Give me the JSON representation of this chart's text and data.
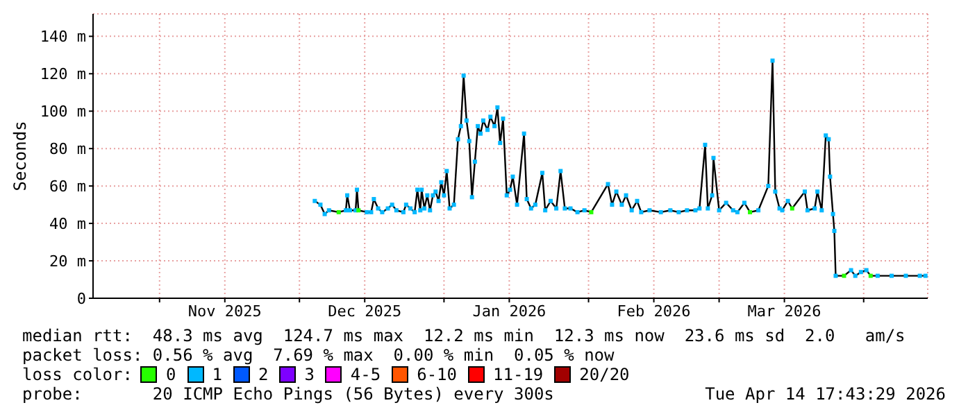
{
  "chart_data": {
    "type": "line",
    "ylabel": "Seconds",
    "legend_title": "loss color:",
    "legend": "bottom",
    "grid": true,
    "marker": "square",
    "line_style": "solid",
    "xlim": [
      "2025-10-17T17:43",
      "2026-04-14T17:43"
    ],
    "xticks": [
      {
        "value": "2025-11-01T00:00",
        "label": null
      },
      {
        "value": "2025-11-15T00:00",
        "label": "Nov 2025"
      },
      {
        "value": "2025-12-01T00:00",
        "label": null
      },
      {
        "value": "2025-12-15T00:00",
        "label": "Dec 2025"
      },
      {
        "value": "2026-01-01T00:00",
        "label": null
      },
      {
        "value": "2026-01-15T00:00",
        "label": "Jan 2026"
      },
      {
        "value": "2026-02-01T00:00",
        "label": null
      },
      {
        "value": "2026-02-15T00:00",
        "label": "Feb 2026"
      },
      {
        "value": "2026-03-01T00:00",
        "label": null
      },
      {
        "value": "2026-03-15T00:00",
        "label": "Mar 2026"
      },
      {
        "value": "2026-04-01T00:00",
        "label": null
      }
    ],
    "ylim": [
      0,
      152
    ],
    "yticks": [
      0,
      {
        "value": 20,
        "label": "20 m"
      },
      {
        "value": 40,
        "label": "40 m"
      },
      {
        "value": 60,
        "label": "60 m"
      },
      {
        "value": 80,
        "label": "80 m"
      },
      {
        "value": 100,
        "label": "100 m"
      },
      {
        "value": 120,
        "label": "120 m"
      },
      {
        "value": 140,
        "label": "140 m"
      }
    ],
    "x": [
      "2025-12-04T07:00",
      "2025-12-05T12:00",
      "2025-12-06T10:00",
      "2025-12-07T08:00",
      "2025-12-09T10:00",
      "2025-12-10T23:00",
      "2025-12-11T06:00",
      "2025-12-11T20:00",
      "2025-12-13T01:00",
      "2025-12-13T08:00",
      "2025-12-13T16:00",
      "2025-12-15T11:00",
      "2025-12-16T09:00",
      "2025-12-16T23:00",
      "2025-12-17T21:00",
      "2025-12-18T18:00",
      "2025-12-19T23:00",
      "2025-12-20T21:00",
      "2025-12-21T19:00",
      "2025-12-23T07:00",
      "2025-12-23T21:00",
      "2025-12-24T19:00",
      "2025-12-25T17:00",
      "2025-12-26T07:00",
      "2025-12-26T22:00",
      "2025-12-27T05:00",
      "2025-12-27T19:00",
      "2025-12-28T10:00",
      "2025-12-29T00:00",
      "2025-12-29T15:00",
      "2025-12-30T05:00",
      "2025-12-30T20:00",
      "2025-12-31T10:00",
      "2026-01-01T00:00",
      "2026-01-01T14:00",
      "2026-01-02T05:00",
      "2026-01-03T03:00",
      "2026-01-04T00:00",
      "2026-01-04T15:00",
      "2026-01-05T05:00",
      "2026-01-05T20:00",
      "2026-01-06T10:00",
      "2026-01-07T00:00",
      "2026-01-07T15:00",
      "2026-01-08T06:00",
      "2026-01-08T20:00",
      "2026-01-09T10:00",
      "2026-01-10T08:00",
      "2026-01-10T23:00",
      "2026-01-11T20:00",
      "2026-01-12T11:00",
      "2026-01-13T01:00",
      "2026-01-13T16:00",
      "2026-01-14T11:00",
      "2026-01-15T04:00",
      "2026-01-15T18:00",
      "2026-01-16T16:00",
      "2026-01-18T04:00",
      "2026-01-18T18:00",
      "2026-01-19T16:00",
      "2026-01-20T14:00",
      "2026-01-22T02:00",
      "2026-01-22T17:00",
      "2026-01-23T21:00",
      "2026-01-25T02:00",
      "2026-01-26T00:00",
      "2026-01-26T22:00",
      "2026-01-28T03:00",
      "2026-01-29T15:00",
      "2026-01-31T03:00",
      "2026-02-01T14:00",
      "2026-02-05T04:00",
      "2026-02-06T01:00",
      "2026-02-06T23:00",
      "2026-02-08T03:00",
      "2026-02-09T01:00",
      "2026-02-10T06:00",
      "2026-02-11T10:00",
      "2026-02-12T07:00",
      "2026-02-14T02:00",
      "2026-02-16T12:00",
      "2026-02-18T13:00",
      "2026-02-20T08:00",
      "2026-02-22T03:00",
      "2026-02-23T22:00",
      "2026-02-24T19:00",
      "2026-02-26T00:00",
      "2026-02-26T14:00",
      "2026-02-27T12:00",
      "2026-02-27T19:00",
      "2026-03-01T00:00",
      "2026-03-02T12:00",
      "2026-03-04T00:00",
      "2026-03-04T22:00",
      "2026-03-06T10:00",
      "2026-03-07T15:00",
      "2026-03-09T10:00",
      "2026-03-11T13:00",
      "2026-03-12T11:00",
      "2026-03-13T01:00",
      "2026-03-13T23:00",
      "2026-03-14T13:00",
      "2026-03-15T18:00",
      "2026-03-16T16:00",
      "2026-03-19T09:00",
      "2026-03-19T23:00",
      "2026-03-21T12:00",
      "2026-03-22T02:00",
      "2026-03-23T00:00",
      "2026-03-23T21:00",
      "2026-03-24T12:00",
      "2026-03-24T19:00",
      "2026-03-25T10:00",
      "2026-03-25T17:00",
      "2026-03-26T00:00",
      "2026-03-27T19:00",
      "2026-03-29T07:00",
      "2026-03-30T05:00",
      "2026-03-31T10:00",
      "2026-04-01T14:00",
      "2026-04-02T12:00",
      "2026-04-04T00:00",
      "2026-04-07T00:00",
      "2026-04-10T01:00",
      "2026-04-13T01:00",
      "2026-04-14T06:00"
    ],
    "series": [
      {
        "color": "#000000",
        "values": [
          52,
          50,
          45,
          47,
          46,
          47,
          55,
          47,
          47,
          58,
          47,
          46,
          46,
          53,
          48,
          46,
          48,
          50,
          47,
          46,
          50,
          48,
          46,
          58,
          47,
          58,
          48,
          55,
          47,
          55,
          57,
          52,
          62,
          55,
          68,
          48,
          50,
          85,
          92,
          119,
          95,
          84,
          54,
          73,
          92,
          88,
          95,
          90,
          97,
          92,
          102,
          83,
          96,
          55,
          58,
          65,
          50,
          88,
          53,
          48,
          50,
          67,
          47,
          52,
          48,
          68,
          48,
          48,
          46,
          47,
          46,
          61,
          50,
          57,
          50,
          55,
          47,
          52,
          46,
          47,
          46,
          47,
          46,
          47,
          47,
          48,
          82,
          48,
          55,
          75,
          47,
          51,
          47,
          46,
          51,
          46,
          47,
          60,
          127,
          57,
          48,
          47,
          52,
          48,
          57,
          47,
          48,
          57,
          47,
          87,
          85,
          65,
          45,
          36,
          12,
          12,
          15,
          12,
          14,
          15,
          12,
          12,
          12,
          12,
          12,
          12
        ],
        "colors": [
          "#00b8ff",
          "#00b8ff",
          "#00b8ff",
          "#00b8ff",
          "#26ff00",
          "#00b8ff",
          "#00b8ff",
          "#00b8ff",
          "#00b8ff",
          "#00b8ff",
          "#26ff00",
          "#00b8ff",
          "#00b8ff",
          "#00b8ff",
          "#00b8ff",
          "#00b8ff",
          "#00b8ff",
          "#00b8ff",
          "#00b8ff",
          "#00b8ff",
          "#00b8ff",
          "#00b8ff",
          "#00b8ff",
          "#00b8ff",
          "#00b8ff",
          "#00b8ff",
          "#00b8ff",
          "#00b8ff",
          "#00b8ff",
          "#00b8ff",
          "#00b8ff",
          "#00b8ff",
          "#00b8ff",
          "#00b8ff",
          "#00b8ff",
          "#00b8ff",
          "#00b8ff",
          "#00b8ff",
          "#00b8ff",
          "#00b8ff",
          "#00b8ff",
          "#00b8ff",
          "#00b8ff",
          "#00b8ff",
          "#00b8ff",
          "#00b8ff",
          "#00b8ff",
          "#00b8ff",
          "#00b8ff",
          "#00b8ff",
          "#00b8ff",
          "#00b8ff",
          "#00b8ff",
          "#00b8ff",
          "#00b8ff",
          "#00b8ff",
          "#00b8ff",
          "#00b8ff",
          "#00b8ff",
          "#00b8ff",
          "#00b8ff",
          "#00b8ff",
          "#00b8ff",
          "#00b8ff",
          "#00b8ff",
          "#00b8ff",
          "#00b8ff",
          "#00b8ff",
          "#00b8ff",
          "#00b8ff",
          "#26ff00",
          "#00b8ff",
          "#00b8ff",
          "#00b8ff",
          "#00b8ff",
          "#00b8ff",
          "#00b8ff",
          "#00b8ff",
          "#00b8ff",
          "#00b8ff",
          "#00b8ff",
          "#00b8ff",
          "#00b8ff",
          "#00b8ff",
          "#00b8ff",
          "#00b8ff",
          "#00b8ff",
          "#00b8ff",
          "#00b8ff",
          "#00b8ff",
          "#00b8ff",
          "#00b8ff",
          "#00b8ff",
          "#00b8ff",
          "#00b8ff",
          "#26ff00",
          "#00b8ff",
          "#00b8ff",
          "#00b8ff",
          "#00b8ff",
          "#00b8ff",
          "#00b8ff",
          "#00b8ff",
          "#26ff00",
          "#00b8ff",
          "#00b8ff",
          "#00b8ff",
          "#00b8ff",
          "#00b8ff",
          "#00b8ff",
          "#00b8ff",
          "#00b8ff",
          "#00b8ff",
          "#00b8ff",
          "#00b8ff",
          "#26ff00",
          "#00b8ff",
          "#00b8ff",
          "#00b8ff",
          "#00b8ff",
          "#26ff00",
          "#00b8ff",
          "#00b8ff",
          "#00b8ff",
          "#00b8ff",
          "#00b8ff"
        ]
      },
      {
        "type": "scatter",
        "name": "0",
        "color": "#26ff00",
        "values": [
          null,
          null,
          null,
          null,
          null,
          null,
          null,
          null,
          null,
          null,
          null,
          null,
          null,
          null,
          null,
          null,
          null,
          null,
          null,
          null,
          null,
          null,
          null,
          null,
          null,
          null,
          null,
          null,
          null,
          null,
          null,
          null,
          null,
          null,
          null,
          null,
          null,
          null,
          null,
          null,
          null,
          null,
          null,
          null,
          null,
          null,
          null,
          null,
          null,
          null,
          null,
          null,
          null,
          null,
          null,
          null,
          null,
          null,
          null,
          null,
          null,
          null,
          null,
          null,
          null,
          null,
          null,
          null,
          null,
          null,
          null,
          null,
          null,
          null,
          null,
          null,
          null,
          null,
          null,
          null,
          null,
          null,
          null,
          null,
          null,
          null,
          null,
          null,
          null,
          null,
          null,
          null,
          null,
          null,
          null,
          null,
          null,
          null,
          null,
          null,
          null,
          null,
          null,
          null,
          null,
          null,
          null,
          null,
          null,
          null,
          null,
          null,
          null,
          null,
          null,
          null,
          null,
          null,
          null,
          null,
          null,
          null,
          null,
          null,
          null,
          null
        ]
      },
      {
        "type": "scatter",
        "name": "1",
        "color": "#00b8ff",
        "values": [
          null,
          null,
          null,
          null,
          null,
          null,
          null,
          null,
          null,
          null,
          null,
          null,
          null,
          null,
          null,
          null,
          null,
          null,
          null,
          null,
          null,
          null,
          null,
          null,
          null,
          null,
          null,
          null,
          null,
          null,
          null,
          null,
          null,
          null,
          null,
          null,
          null,
          null,
          null,
          null,
          null,
          null,
          null,
          null,
          null,
          null,
          null,
          null,
          null,
          null,
          null,
          null,
          null,
          null,
          null,
          null,
          null,
          null,
          null,
          null,
          null,
          null,
          null,
          null,
          null,
          null,
          null,
          null,
          null,
          null,
          null,
          null,
          null,
          null,
          null,
          null,
          null,
          null,
          null,
          null,
          null,
          null,
          null,
          null,
          null,
          null,
          null,
          null,
          null,
          null,
          null,
          null,
          null,
          null,
          null,
          null,
          null,
          null,
          null,
          null,
          null,
          null,
          null,
          null,
          null,
          null,
          null,
          null,
          null,
          null,
          null,
          null,
          null,
          null,
          null,
          null,
          null,
          null,
          null,
          null,
          null,
          null,
          null,
          null,
          null,
          null
        ]
      },
      {
        "type": "scatter",
        "name": "2",
        "color": "#0059ff",
        "values": [
          null,
          null,
          null,
          null,
          null,
          null,
          null,
          null,
          null,
          null,
          null,
          null,
          null,
          null,
          null,
          null,
          null,
          null,
          null,
          null,
          null,
          null,
          null,
          null,
          null,
          null,
          null,
          null,
          null,
          null,
          null,
          null,
          null,
          null,
          null,
          null,
          null,
          null,
          null,
          null,
          null,
          null,
          null,
          null,
          null,
          null,
          null,
          null,
          null,
          null,
          null,
          null,
          null,
          null,
          null,
          null,
          null,
          null,
          null,
          null,
          null,
          null,
          null,
          null,
          null,
          null,
          null,
          null,
          null,
          null,
          null,
          null,
          null,
          null,
          null,
          null,
          null,
          null,
          null,
          null,
          null,
          null,
          null,
          null,
          null,
          null,
          null,
          null,
          null,
          null,
          null,
          null,
          null,
          null,
          null,
          null,
          null,
          null,
          null,
          null,
          null,
          null,
          null,
          null,
          null,
          null,
          null,
          null,
          null,
          null,
          null,
          null,
          null,
          null,
          null,
          null,
          null,
          null,
          null,
          null,
          null,
          null,
          null,
          null,
          null,
          null
        ]
      },
      {
        "type": "scatter",
        "name": "3",
        "color": "#7e00ff",
        "values": [
          null,
          null,
          null,
          null,
          null,
          null,
          null,
          null,
          null,
          null,
          null,
          null,
          null,
          null,
          null,
          null,
          null,
          null,
          null,
          null,
          null,
          null,
          null,
          null,
          null,
          null,
          null,
          null,
          null,
          null,
          null,
          null,
          null,
          null,
          null,
          null,
          null,
          null,
          null,
          null,
          null,
          null,
          null,
          null,
          null,
          null,
          null,
          null,
          null,
          null,
          null,
          null,
          null,
          null,
          null,
          null,
          null,
          null,
          null,
          null,
          null,
          null,
          null,
          null,
          null,
          null,
          null,
          null,
          null,
          null,
          null,
          null,
          null,
          null,
          null,
          null,
          null,
          null,
          null,
          null,
          null,
          null,
          null,
          null,
          null,
          null,
          null,
          null,
          null,
          null,
          null,
          null,
          null,
          null,
          null,
          null,
          null,
          null,
          null,
          null,
          null,
          null,
          null,
          null,
          null,
          null,
          null,
          null,
          null,
          null,
          null,
          null,
          null,
          null,
          null,
          null,
          null,
          null,
          null,
          null,
          null,
          null,
          null,
          null,
          null,
          null
        ]
      },
      {
        "type": "scatter",
        "name": "4-5",
        "color": "#ff00ff",
        "values": [
          null,
          null,
          null,
          null,
          null,
          null,
          null,
          null,
          null,
          null,
          null,
          null,
          null,
          null,
          null,
          null,
          null,
          null,
          null,
          null,
          null,
          null,
          null,
          null,
          null,
          null,
          null,
          null,
          null,
          null,
          null,
          null,
          null,
          null,
          null,
          null,
          null,
          null,
          null,
          null,
          null,
          null,
          null,
          null,
          null,
          null,
          null,
          null,
          null,
          null,
          null,
          null,
          null,
          null,
          null,
          null,
          null,
          null,
          null,
          null,
          null,
          null,
          null,
          null,
          null,
          null,
          null,
          null,
          null,
          null,
          null,
          null,
          null,
          null,
          null,
          null,
          null,
          null,
          null,
          null,
          null,
          null,
          null,
          null,
          null,
          null,
          null,
          null,
          null,
          null,
          null,
          null,
          null,
          null,
          null,
          null,
          null,
          null,
          null,
          null,
          null,
          null,
          null,
          null,
          null,
          null,
          null,
          null,
          null,
          null,
          null,
          null,
          null,
          null,
          null,
          null,
          null,
          null,
          null,
          null,
          null,
          null,
          null,
          null,
          null,
          null
        ]
      },
      {
        "type": "scatter",
        "name": "6-10",
        "color": "#ff5500",
        "values": [
          null,
          null,
          null,
          null,
          null,
          null,
          null,
          null,
          null,
          null,
          null,
          null,
          null,
          null,
          null,
          null,
          null,
          null,
          null,
          null,
          null,
          null,
          null,
          null,
          null,
          null,
          null,
          null,
          null,
          null,
          null,
          null,
          null,
          null,
          null,
          null,
          null,
          null,
          null,
          null,
          null,
          null,
          null,
          null,
          null,
          null,
          null,
          null,
          null,
          null,
          null,
          null,
          null,
          null,
          null,
          null,
          null,
          null,
          null,
          null,
          null,
          null,
          null,
          null,
          null,
          null,
          null,
          null,
          null,
          null,
          null,
          null,
          null,
          null,
          null,
          null,
          null,
          null,
          null,
          null,
          null,
          null,
          null,
          null,
          null,
          null,
          null,
          null,
          null,
          null,
          null,
          null,
          null,
          null,
          null,
          null,
          null,
          null,
          null,
          null,
          null,
          null,
          null,
          null,
          null,
          null,
          null,
          null,
          null,
          null,
          null,
          null,
          null,
          null,
          null,
          null,
          null,
          null,
          null,
          null,
          null,
          null,
          null,
          null,
          null,
          null
        ]
      },
      {
        "type": "scatter",
        "name": "11-19",
        "color": "#ff0000",
        "values": [
          null,
          null,
          null,
          null,
          null,
          null,
          null,
          null,
          null,
          null,
          null,
          null,
          null,
          null,
          null,
          null,
          null,
          null,
          null,
          null,
          null,
          null,
          null,
          null,
          null,
          null,
          null,
          null,
          null,
          null,
          null,
          null,
          null,
          null,
          null,
          null,
          null,
          null,
          null,
          null,
          null,
          null,
          null,
          null,
          null,
          null,
          null,
          null,
          null,
          null,
          null,
          null,
          null,
          null,
          null,
          null,
          null,
          null,
          null,
          null,
          null,
          null,
          null,
          null,
          null,
          null,
          null,
          null,
          null,
          null,
          null,
          null,
          null,
          null,
          null,
          null,
          null,
          null,
          null,
          null,
          null,
          null,
          null,
          null,
          null,
          null,
          null,
          null,
          null,
          null,
          null,
          null,
          null,
          null,
          null,
          null,
          null,
          null,
          null,
          null,
          null,
          null,
          null,
          null,
          null,
          null,
          null,
          null,
          null,
          null,
          null,
          null,
          null,
          null,
          null,
          null,
          null,
          null,
          null,
          null,
          null,
          null,
          null,
          null,
          null,
          null
        ]
      },
      {
        "type": "scatter",
        "name": "20/20",
        "color": "#a10000",
        "values": [
          null,
          null,
          null,
          null,
          null,
          null,
          null,
          null,
          null,
          null,
          null,
          null,
          null,
          null,
          null,
          null,
          null,
          null,
          null,
          null,
          null,
          null,
          null,
          null,
          null,
          null,
          null,
          null,
          null,
          null,
          null,
          null,
          null,
          null,
          null,
          null,
          null,
          null,
          null,
          null,
          null,
          null,
          null,
          null,
          null,
          null,
          null,
          null,
          null,
          null,
          null,
          null,
          null,
          null,
          null,
          null,
          null,
          null,
          null,
          null,
          null,
          null,
          null,
          null,
          null,
          null,
          null,
          null,
          null,
          null,
          null,
          null,
          null,
          null,
          null,
          null,
          null,
          null,
          null,
          null,
          null,
          null,
          null,
          null,
          null,
          null,
          null,
          null,
          null,
          null,
          null,
          null,
          null,
          null,
          null,
          null,
          null,
          null,
          null,
          null,
          null,
          null,
          null,
          null,
          null,
          null,
          null,
          null,
          null,
          null,
          null,
          null,
          null,
          null,
          null,
          null,
          null,
          null,
          null,
          null,
          null,
          null,
          null,
          null,
          null,
          null
        ]
      }
    ],
    "annotations": [
      "median rtt:  48.3 ms avg  124.7 ms max  12.2 ms min  12.3 ms now  23.6 ms sd  2.0   am/s",
      "packet loss: 0.56 % avg  7.69 % max  0.00 % min  0.05 % now",
      "probe:       20 ICMP Echo Pings (56 Bytes) every 300s",
      "Tue Apr 14 17:43:29 2026"
    ]
  }
}
